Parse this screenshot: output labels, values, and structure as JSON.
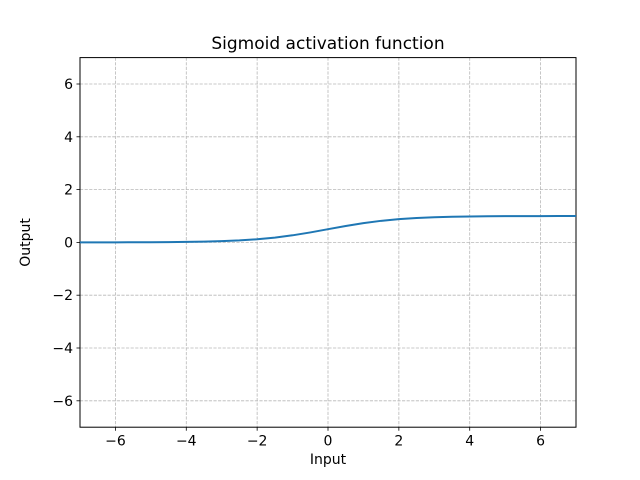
{
  "chart_data": {
    "type": "line",
    "title": "Sigmoid activation function",
    "xlabel": "Input",
    "ylabel": "Output",
    "xlim": [
      -7,
      7
    ],
    "ylim": [
      -7,
      7
    ],
    "xticks": [
      -6,
      -4,
      -2,
      0,
      2,
      4,
      6
    ],
    "yticks": [
      -6,
      -4,
      -2,
      0,
      2,
      4,
      6
    ],
    "grid": true,
    "grid_style": "dashed",
    "legend": "none",
    "colors": {
      "line": "#1f77b4",
      "grid": "#b8b8b8",
      "spine": "#000000",
      "background": "#ffffff",
      "text": "#000000"
    },
    "series": [
      {
        "name": "sigmoid",
        "color": "#1f77b4",
        "x": [
          -7,
          -6.5,
          -6,
          -5.5,
          -5,
          -4.5,
          -4,
          -3.5,
          -3,
          -2.5,
          -2,
          -1.5,
          -1,
          -0.5,
          0,
          0.5,
          1,
          1.5,
          2,
          2.5,
          3,
          3.5,
          4,
          4.5,
          5,
          5.5,
          6,
          6.5,
          7
        ],
        "y": [
          0.0009,
          0.0015,
          0.0025,
          0.0041,
          0.0067,
          0.0111,
          0.018,
          0.0293,
          0.0474,
          0.0759,
          0.1192,
          0.1824,
          0.2689,
          0.3775,
          0.5,
          0.6225,
          0.7311,
          0.8176,
          0.8808,
          0.9241,
          0.9526,
          0.9707,
          0.982,
          0.9889,
          0.9933,
          0.9959,
          0.9975,
          0.9985,
          0.9991
        ]
      }
    ]
  }
}
